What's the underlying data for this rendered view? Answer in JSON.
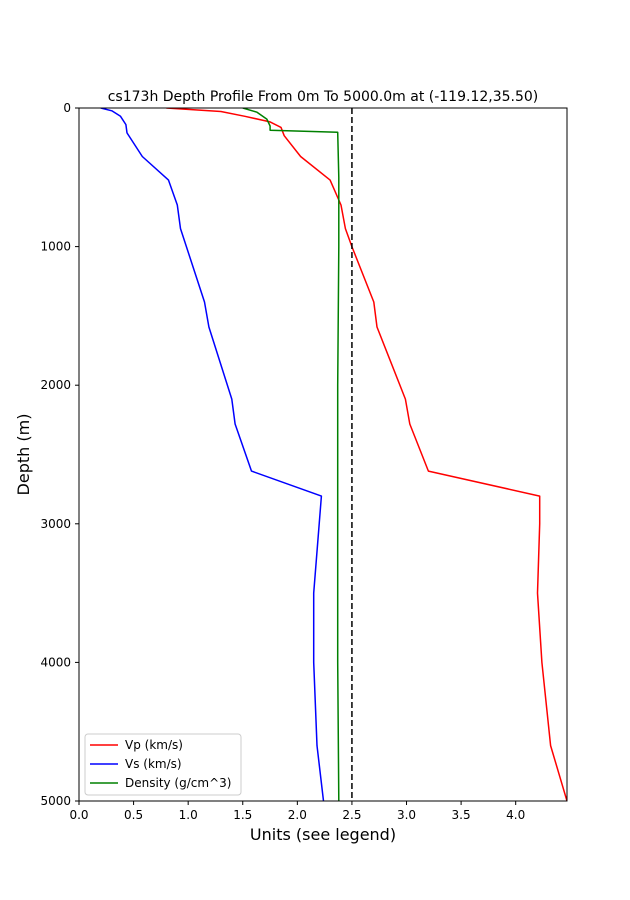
{
  "chart_data": {
    "type": "line",
    "title": "cs173h Depth Profile From 0m To 5000.0m at (-119.12,35.50)",
    "xlabel": "Units (see legend)",
    "ylabel": "Depth (m)",
    "xlim": [
      0.0,
      4.47
    ],
    "ylim": [
      0,
      5000
    ],
    "y_inverted": true,
    "x_ticks": [
      0.0,
      0.5,
      1.0,
      1.5,
      2.0,
      2.5,
      3.0,
      3.5,
      4.0
    ],
    "x_tick_labels": [
      "0.0",
      "0.5",
      "1.0",
      "1.5",
      "2.0",
      "2.5",
      "3.0",
      "3.5",
      "4.0"
    ],
    "y_ticks": [
      0,
      1000,
      2000,
      3000,
      4000,
      5000
    ],
    "y_tick_labels": [
      "0",
      "1000",
      "2000",
      "3000",
      "4000",
      "5000"
    ],
    "grid": false,
    "legend_position": "lower-left",
    "reference_line": {
      "x": 2.5,
      "style": "dashed",
      "color": "#000000"
    },
    "series": [
      {
        "name": "Vp (km/s)",
        "color": "#ff0000",
        "x": [
          0.8,
          1.3,
          1.52,
          1.75,
          1.85,
          1.88,
          2.03,
          2.3,
          2.4,
          2.44,
          2.5,
          2.7,
          2.73,
          2.99,
          3.03,
          3.2,
          4.22,
          4.22,
          4.2,
          4.24,
          4.32,
          4.47
        ],
        "y": [
          0,
          25,
          60,
          100,
          140,
          200,
          350,
          520,
          700,
          870,
          1000,
          1400,
          1580,
          2100,
          2280,
          2620,
          2800,
          3000,
          3500,
          4000,
          4600,
          5000
        ]
      },
      {
        "name": "Vs (km/s)",
        "color": "#0000ff",
        "x": [
          0.2,
          0.3,
          0.38,
          0.43,
          0.44,
          0.58,
          0.82,
          0.9,
          0.93,
          1.15,
          1.19,
          1.4,
          1.43,
          1.58,
          2.22,
          2.2,
          2.15,
          2.15,
          2.18,
          2.24
        ],
        "y": [
          0,
          20,
          60,
          120,
          180,
          350,
          520,
          700,
          870,
          1400,
          1580,
          2100,
          2280,
          2620,
          2800,
          3000,
          3500,
          4000,
          4600,
          5000
        ]
      },
      {
        "name": "Density (g/cm^3)",
        "color": "#008000",
        "x": [
          1.5,
          1.63,
          1.72,
          1.75,
          1.75,
          2.37,
          2.38,
          2.38,
          2.37,
          2.37,
          2.37,
          2.38
        ],
        "y": [
          0,
          30,
          80,
          130,
          160,
          175,
          500,
          1000,
          2000,
          3000,
          4000,
          5000
        ]
      }
    ]
  }
}
